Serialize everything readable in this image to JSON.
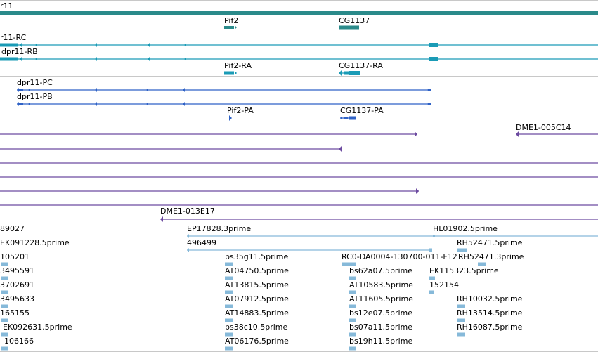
{
  "colors": {
    "gene": "#2a8a8a",
    "mrna": "#1a9bb6",
    "cds": "#2f62c6",
    "clone": "#6c4aa0",
    "est": "#86b9d9",
    "divider": "#c8c8c8"
  },
  "gene_track": {
    "labels": {
      "dpr11": "r11",
      "pif2": "Pif2",
      "cg1137": "CG1137"
    }
  },
  "transcript_track": {
    "labels": {
      "dpr11_rc": "r11-RC",
      "dpr11_rb": "dpr11-RB",
      "pif2_ra": "Pif2-RA",
      "cg1137_ra": "CG1137-RA"
    }
  },
  "protein_track": {
    "labels": {
      "dpr11_pc": "dpr11-PC",
      "dpr11_pb": "dpr11-PB",
      "pif2_pa": "Pif2-PA",
      "cg1137_pa": "CG1137-PA"
    }
  },
  "clone_track": {
    "labels": {
      "dme1_005c14": "DME1-005C14",
      "dme1_013e17": "DME1-013E17"
    }
  },
  "est_track": {
    "labels": {
      "l89027": "89027",
      "ep17828": "EP17828.3prime",
      "hl01902": "HL01902.5prime",
      "ek091228": "EK091228.5prime",
      "l496499": "496499",
      "rh52471_5": "RH52471.5prime",
      "l105201": "105201",
      "bs35g11": "bs35g11.5prime",
      "rc0": "RC0-DA0004-130700-011-F12",
      "rh52471_3": "RH52471.3prime",
      "l3495591": "3495591",
      "at04750": "AT04750.5prime",
      "bs62a07": "bs62a07.5prime",
      "ek115323": "EK115323.5prime",
      "l3702691": "3702691",
      "at13815": "AT13815.5prime",
      "at10583": "AT10583.5prime",
      "l152154": "152154",
      "l3495633": "3495633",
      "at07912": "AT07912.5prime",
      "at11605": "AT11605.5prime",
      "rh10032": "RH10032.5prime",
      "l165155": "165155",
      "at14883": "AT14883.5prime",
      "bs12e07": "bs12e07.5prime",
      "rh13514": "RH13514.5prime",
      "ek092631": "EK092631.5prime",
      "bs38c10": "bs38c10.5prime",
      "bs07a11": "bs07a11.5prime",
      "rh16087": "RH16087.5prime",
      "l106166": "106166",
      "at06176": "AT06176.5prime",
      "bs19h11": "bs19h11.5prime"
    }
  }
}
